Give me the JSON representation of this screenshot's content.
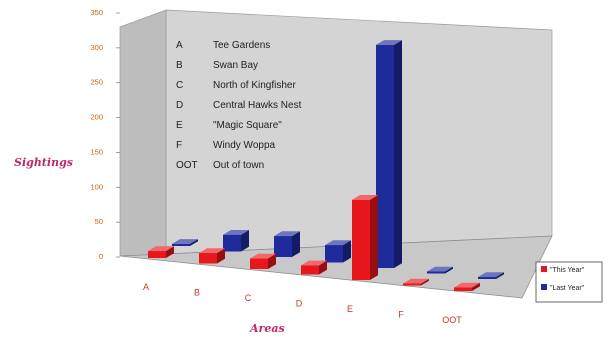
{
  "chart_data": {
    "type": "bar",
    "view": "3d-clustered-depth",
    "categories": [
      "A",
      "B",
      "C",
      "D",
      "E",
      "F",
      "OOT"
    ],
    "series": [
      {
        "name": "\"This Year\"",
        "color": "#e8171c",
        "values": [
          10,
          15,
          15,
          13,
          115,
          2,
          5
        ]
      },
      {
        "name": "\"Last Year\"",
        "color": "#1f2a9c",
        "values": [
          3,
          24,
          30,
          25,
          320,
          0,
          0
        ]
      }
    ],
    "xlabel": "Areas",
    "ylabel": "Sightings",
    "ylim": [
      0,
      350
    ],
    "yticks": [
      0,
      50,
      100,
      150,
      200,
      250,
      300,
      350
    ],
    "grid": false,
    "legend_position": "bottom-right",
    "key": [
      {
        "code": "A",
        "name": "Tee Gardens"
      },
      {
        "code": "B",
        "name": "Swan Bay"
      },
      {
        "code": "C",
        "name": "North of Kingfisher"
      },
      {
        "code": "D",
        "name": "Central Hawks Nest"
      },
      {
        "code": "E",
        "name": "\"Magic Square\""
      },
      {
        "code": "F",
        "name": "Windy Woppa"
      },
      {
        "code": "OOT",
        "name": "Out of town"
      }
    ]
  }
}
